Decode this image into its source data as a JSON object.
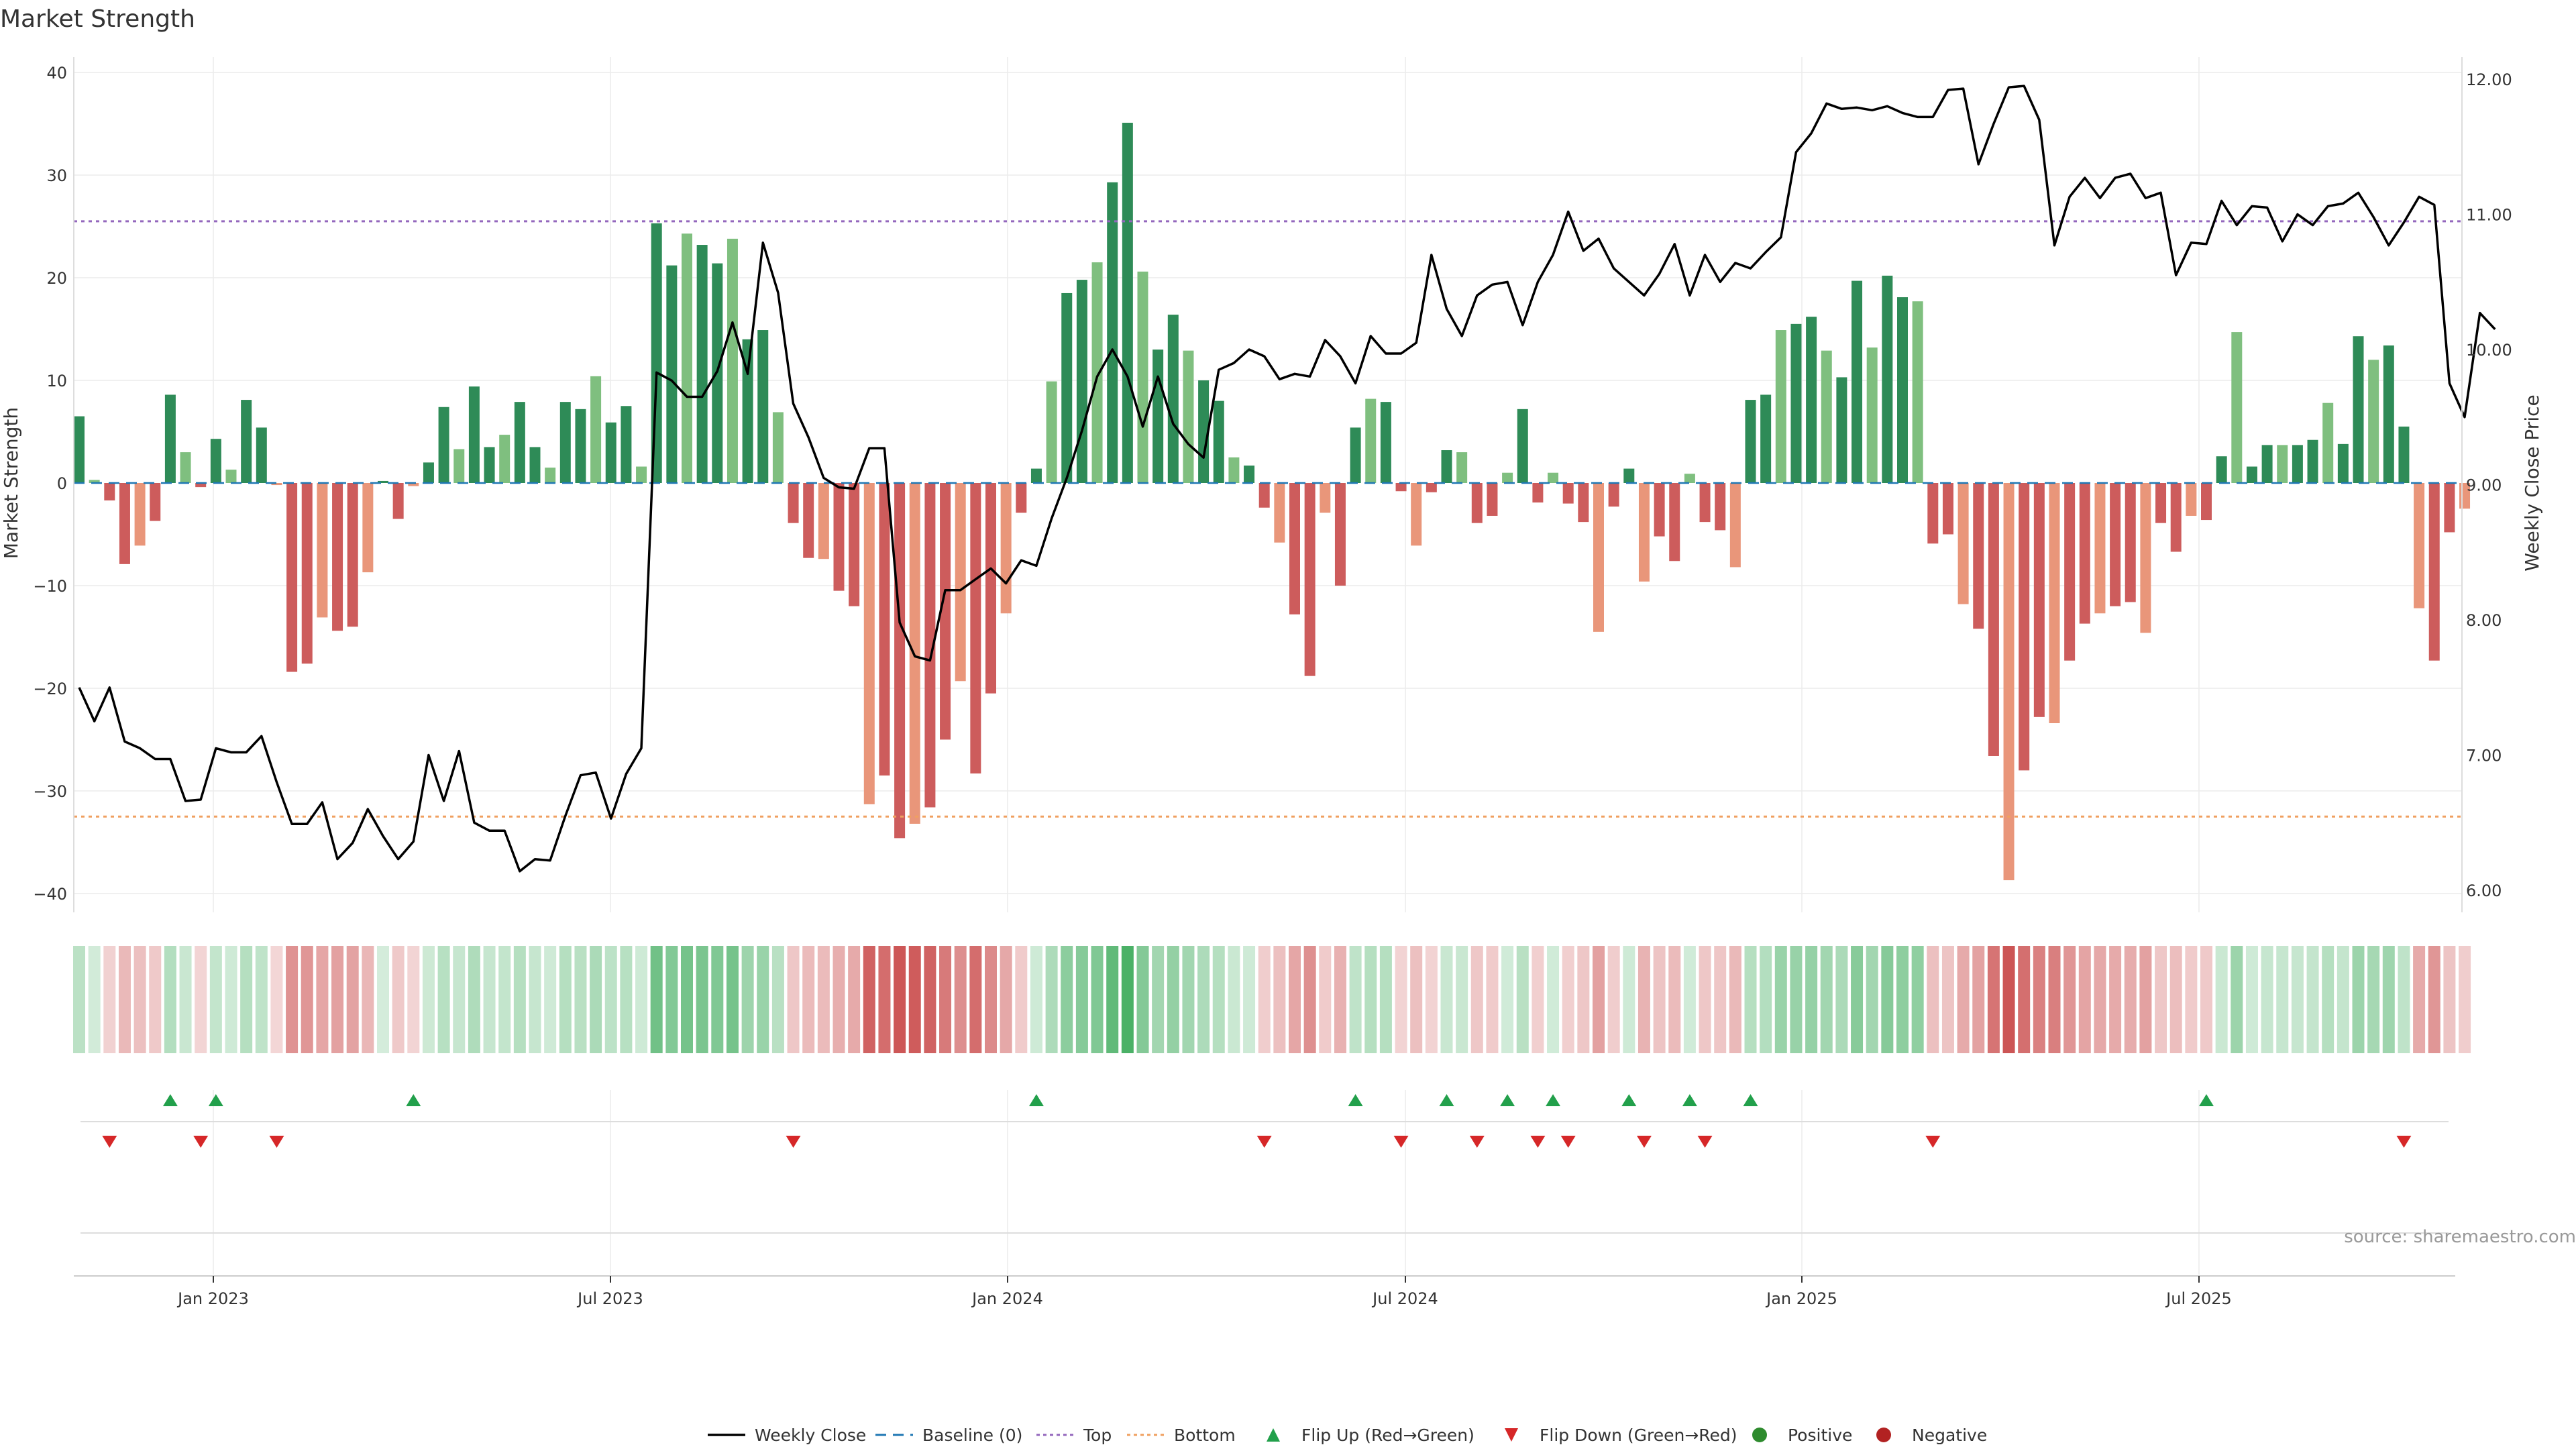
{
  "title": "Market Strength",
  "source_note": "source: sharemaestro.com",
  "chart_data": {
    "type": "bar",
    "title": "Market Strength",
    "ylabel": "Market Strength",
    "y2label": "Weekly Close Price",
    "ylim": [
      -40,
      40
    ],
    "y2lim": [
      6.0,
      12.0
    ],
    "yticks": [
      "40",
      "30",
      "20",
      "10",
      "0",
      "−10",
      "−20",
      "−30",
      "−40"
    ],
    "y2ticks": [
      "12.00",
      "11.00",
      "10.00",
      "9.00",
      "8.00",
      "7.00",
      "6.00"
    ],
    "xticks": [
      "Jan 2023",
      "Jul 2023",
      "Jan 2024",
      "Jul 2024",
      "Jan 2025",
      "Jul 2025"
    ],
    "top_threshold": 25.5,
    "bottom_threshold": -32.5,
    "colors": {
      "pos_strong": "#2e8b57",
      "pos_weak": "#7fbf7f",
      "neg_strong": "#cd5c5c",
      "neg_weak": "#e9967a",
      "close": "#000000",
      "baseline": "#1f77b4",
      "top": "#9467bd",
      "bottom": "#f0a060",
      "flip_up": "#22a04b",
      "flip_down": "#d62728"
    },
    "series": [
      {
        "name": "Market Strength",
        "values": [
          6.5,
          0.3,
          -1.7,
          -7.9,
          -6.1,
          -3.7,
          8.6,
          3.0,
          -0.4,
          4.3,
          1.3,
          8.1,
          5.4,
          -0.2,
          -18.4,
          -17.6,
          -13.1,
          -14.4,
          -14.0,
          -8.7,
          0.2,
          -3.5,
          -0.3,
          2.0,
          7.4,
          3.3,
          9.4,
          3.5,
          4.7,
          7.9,
          3.5,
          1.5,
          7.9,
          7.2,
          10.4,
          5.9,
          7.5,
          1.6,
          25.3,
          21.2,
          24.3,
          23.2,
          21.4,
          23.8,
          14.0,
          14.9,
          6.9,
          -3.9,
          -7.3,
          -7.4,
          -10.5,
          -12.0,
          -31.3,
          -28.5,
          -34.6,
          -33.2,
          -31.6,
          -25.0,
          -19.3,
          -28.3,
          -20.5,
          -12.7,
          -2.9,
          1.4,
          9.9,
          18.5,
          19.8,
          21.5,
          29.3,
          35.1,
          20.6,
          13.0,
          16.4,
          12.9,
          10.0,
          8.0,
          2.5,
          1.7,
          -2.4,
          -5.8,
          -12.8,
          -18.8,
          -2.9,
          -10.0,
          5.4,
          8.2,
          7.9,
          -0.8,
          -6.1,
          -0.9,
          3.2,
          3.0,
          -3.9,
          -3.2,
          1.0,
          7.2,
          -1.9,
          1.0,
          -2.0,
          -3.8,
          -14.5,
          -2.3,
          1.4,
          -9.6,
          -5.2,
          -7.6,
          0.9,
          -3.8,
          -4.6,
          -8.2,
          8.1,
          8.6,
          14.9,
          15.5,
          16.2,
          12.9,
          10.3,
          19.7,
          13.2,
          20.2,
          18.1,
          17.7,
          -5.9,
          -5.0,
          -11.8,
          -14.2,
          -26.6,
          -38.7,
          -28.0,
          -22.8,
          -23.4,
          -17.3,
          -13.7,
          -12.7,
          -12.0,
          -11.6,
          -14.6,
          -3.9,
          -6.7,
          -3.2,
          -3.6,
          2.6,
          14.7,
          1.6,
          3.7,
          3.7,
          3.7,
          4.2,
          7.8,
          3.8,
          14.3,
          12.0,
          13.4,
          5.5,
          -12.2,
          -17.3,
          -4.8,
          -2.5
        ]
      },
      {
        "name": "Weekly Close",
        "values": [
          7.5,
          7.25,
          7.5,
          7.1,
          7.05,
          6.97,
          6.97,
          6.66,
          6.67,
          7.05,
          7.02,
          7.02,
          7.14,
          6.8,
          6.49,
          6.49,
          6.65,
          6.23,
          6.35,
          6.6,
          6.4,
          6.23,
          6.36,
          7.0,
          6.66,
          7.03,
          6.5,
          6.44,
          6.44,
          6.14,
          6.23,
          6.22,
          6.55,
          6.85,
          6.87,
          6.53,
          6.86,
          7.05,
          9.83,
          9.77,
          9.65,
          9.65,
          9.84,
          10.2,
          9.82,
          10.79,
          10.42,
          9.6,
          9.35,
          9.05,
          8.98,
          8.97,
          9.27,
          9.27,
          7.98,
          7.73,
          7.7,
          8.22,
          8.22,
          8.3,
          8.38,
          8.27,
          8.44,
          8.4,
          8.75,
          9.05,
          9.4,
          9.8,
          10.0,
          9.8,
          9.43,
          9.8,
          9.45,
          9.3,
          9.2,
          9.85,
          9.9,
          10.0,
          9.95,
          9.78,
          9.82,
          9.8,
          10.07,
          9.95,
          9.75,
          10.1,
          9.97,
          9.97,
          10.05,
          10.7,
          10.3,
          10.1,
          10.4,
          10.48,
          10.5,
          10.18,
          10.5,
          10.7,
          11.02,
          10.73,
          10.82,
          10.6,
          10.5,
          10.4,
          10.56,
          10.78,
          10.4,
          10.7,
          10.5,
          10.64,
          10.6,
          10.72,
          10.83,
          11.46,
          11.6,
          11.82,
          11.78,
          11.79,
          11.77,
          11.8,
          11.75,
          11.72,
          11.72,
          11.92,
          11.93,
          11.37,
          11.67,
          11.94,
          11.95,
          11.7,
          10.77,
          11.13,
          11.27,
          11.12,
          11.27,
          11.3,
          11.12,
          11.16,
          10.55,
          10.79,
          10.78,
          11.1,
          10.92,
          11.06,
          11.05,
          10.8,
          11.0,
          10.92,
          11.06,
          11.08,
          11.16,
          10.98,
          10.77,
          10.94,
          11.13,
          11.07,
          9.75,
          9.5,
          10.27,
          10.15
        ]
      }
    ],
    "flip_up_indices": [
      6,
      9,
      22,
      63,
      84,
      90,
      94,
      97,
      102,
      106,
      110,
      140
    ],
    "flip_down_indices": [
      2,
      8,
      13,
      47,
      78,
      87,
      92,
      96,
      98,
      103,
      107,
      122,
      153
    ]
  },
  "legend": [
    {
      "label": "Weekly Close",
      "symbol": "line"
    },
    {
      "label": "Baseline (0)",
      "symbol": "dash"
    },
    {
      "label": "Top",
      "symbol": "dot"
    },
    {
      "label": "Bottom",
      "symbol": "dot2"
    },
    {
      "label": "Flip Up (Red→Green)",
      "symbol": "tri-up"
    },
    {
      "label": "Flip Down (Green→Red)",
      "symbol": "tri-down"
    },
    {
      "label": "Positive",
      "symbol": "circle-pos"
    },
    {
      "label": "Negative",
      "symbol": "circle-neg"
    }
  ]
}
